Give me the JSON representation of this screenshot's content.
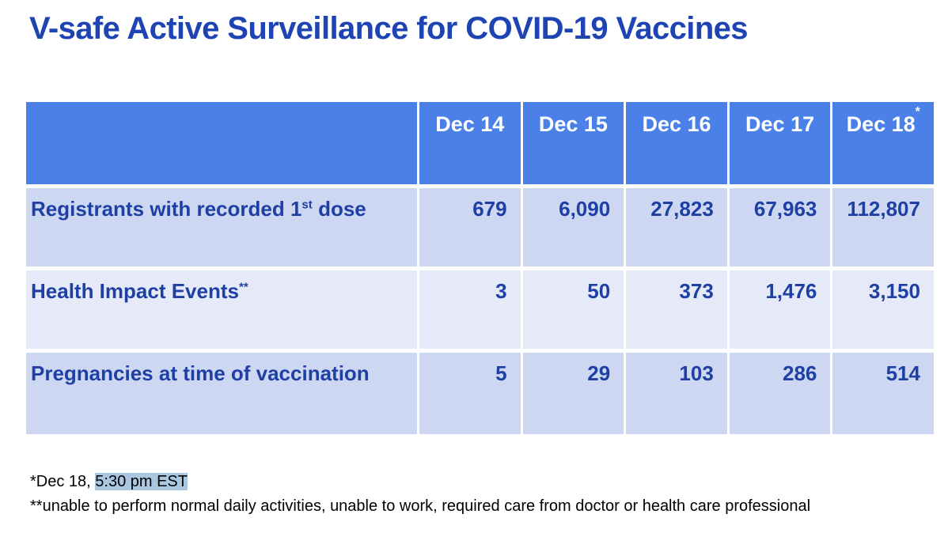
{
  "page": {
    "title": "V-safe Active Surveillance for COVID-19 Vaccines"
  },
  "colors": {
    "title_text": "#1E43B2",
    "header_bg": "#4A80E8",
    "header_text": "#FFFFFF",
    "row_odd_bg": "#CDD7F2",
    "row_even_bg": "#E6EAF8",
    "cell_text": "#1E3FA4",
    "footnote_text": "#000000",
    "highlight_bg": "#A9C7E1"
  },
  "table": {
    "header": {
      "columns": [
        {
          "label": "Dec 14",
          "sup": ""
        },
        {
          "label": "Dec 15",
          "sup": ""
        },
        {
          "label": "Dec 16",
          "sup": ""
        },
        {
          "label": "Dec 17",
          "sup": ""
        },
        {
          "label": "Dec 18",
          "sup": "*"
        }
      ]
    },
    "rows": [
      {
        "label": "Registrants with recorded 1",
        "label_sup": "st",
        "label_suffix": " dose",
        "values": [
          "679",
          "6,090",
          "27,823",
          "67,963",
          "112,807"
        ]
      },
      {
        "label": "Health Impact Events",
        "label_sup": "**",
        "label_suffix": "",
        "values": [
          "3",
          "50",
          "373",
          "1,476",
          "3,150"
        ]
      },
      {
        "label": "Pregnancies at time of vaccination",
        "label_sup": "",
        "label_suffix": "",
        "values": [
          "5",
          "29",
          "103",
          "286",
          "514"
        ]
      }
    ]
  },
  "footnotes": {
    "note1_prefix": "*Dec 18, ",
    "note1_highlight": "5:30 pm EST",
    "note2": "**unable to perform normal daily activities, unable to work, required care from doctor or health care professional"
  },
  "chart_data": {
    "type": "table",
    "title": "V-safe Active Surveillance for COVID-19 Vaccines",
    "columns": [
      "Dec 14",
      "Dec 15",
      "Dec 16",
      "Dec 17",
      "Dec 18*"
    ],
    "rows": [
      {
        "label": "Registrants with recorded 1st dose",
        "values": [
          679,
          6090,
          27823,
          67963,
          112807
        ]
      },
      {
        "label": "Health Impact Events**",
        "values": [
          3,
          50,
          373,
          1476,
          3150
        ]
      },
      {
        "label": "Pregnancies at time of vaccination",
        "values": [
          5,
          29,
          103,
          286,
          514
        ]
      }
    ],
    "notes": [
      "*Dec 18, 5:30 pm EST",
      "**unable to perform normal daily activities, unable to work, required care from doctor or health care professional"
    ]
  }
}
